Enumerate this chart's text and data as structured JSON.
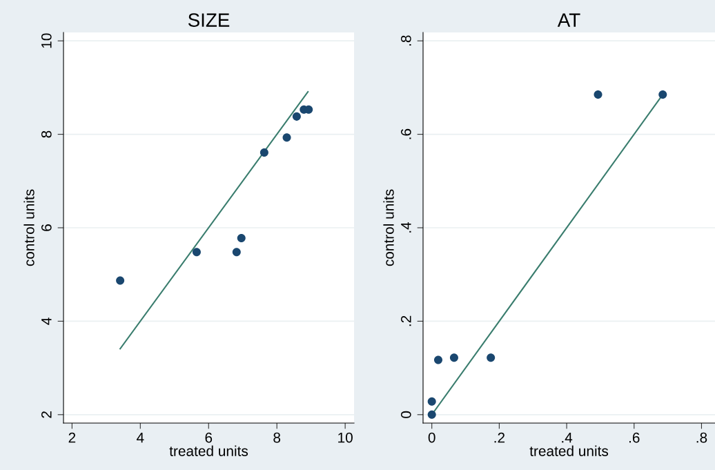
{
  "chart_data": [
    {
      "type": "scatter",
      "title": "SIZE",
      "xlabel": "treated units",
      "ylabel": "control units",
      "series": [
        {
          "color": "#1a476f",
          "marker": "circle",
          "x": [
            3.41,
            5.65,
            6.82,
            6.96,
            7.63,
            8.29,
            8.58,
            8.79,
            8.93
          ],
          "values": [
            4.87,
            5.48,
            5.48,
            5.78,
            7.61,
            7.93,
            8.38,
            8.53,
            8.53
          ]
        },
        {
          "type": "line",
          "marker": "none",
          "color": "#3a7d6e",
          "x": [
            3.41,
            8.91
          ],
          "values": [
            3.41,
            8.91
          ]
        }
      ],
      "xlim": [
        1.75,
        10.26
      ],
      "ylim": [
        1.82,
        10.18
      ],
      "xticks": [
        2,
        4,
        6,
        8,
        10
      ],
      "yticks": [
        2,
        4,
        6,
        8,
        10
      ],
      "grid": "y"
    },
    {
      "type": "scatter",
      "title": "AT",
      "xlabel": "treated units",
      "ylabel": "control units",
      "series": [
        {
          "color": "#1a476f",
          "marker": "circle",
          "x": [
            0,
            0,
            0.019,
            0.066,
            0.175,
            0.493,
            0.685
          ],
          "values": [
            0,
            0.028,
            0.117,
            0.122,
            0.122,
            0.685,
            0.685
          ]
        },
        {
          "type": "line",
          "marker": "none",
          "color": "#3a7d6e",
          "x": [
            0,
            0.685
          ],
          "values": [
            0,
            0.685
          ]
        }
      ],
      "xlim": [
        -0.026,
        0.84
      ],
      "ylim": [
        -0.018,
        0.818
      ],
      "xticks": [
        {
          "value": 0,
          "label": "0"
        },
        {
          "value": 0.2,
          "label": ".2"
        },
        {
          "value": 0.4,
          "label": ".4"
        },
        {
          "value": 0.6,
          "label": ".6"
        },
        {
          "value": 0.8,
          "label": ".8"
        }
      ],
      "yticks": [
        {
          "value": 0,
          "label": "0"
        },
        {
          "value": 0.2,
          "label": ".2"
        },
        {
          "value": 0.4,
          "label": ".4"
        },
        {
          "value": 0.6,
          "label": ".6"
        },
        {
          "value": 0.8,
          "label": ".8"
        }
      ],
      "grid": "y"
    }
  ]
}
